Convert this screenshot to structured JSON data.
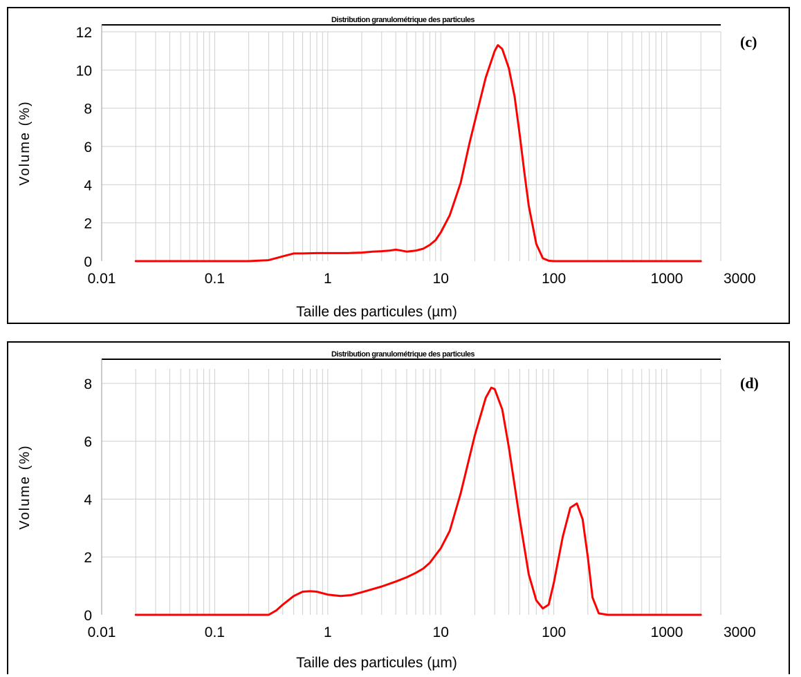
{
  "chart_data": [
    {
      "type": "line",
      "panel_label": "(c)",
      "title": "Distribution granulométrique des particules",
      "xlabel": "Taille des particules (µm)",
      "ylabel": "Volume (%)",
      "x_scale": "log",
      "xlim": [
        0.01,
        3000
      ],
      "ylim": [
        0,
        12
      ],
      "x_ticks": [
        0.01,
        0.1,
        1,
        10,
        100,
        1000,
        3000
      ],
      "x_tick_labels": [
        "0.01",
        "0.1",
        "1",
        "10",
        "100",
        "1000",
        "3000"
      ],
      "y_ticks": [
        0,
        2,
        4,
        6,
        8,
        10,
        12
      ],
      "y_tick_labels": [
        "0",
        "2",
        "4",
        "6",
        "8",
        "10",
        "12"
      ],
      "grid": true,
      "line_color": "#ff0000",
      "series": [
        {
          "x": [
            0.02,
            0.05,
            0.1,
            0.2,
            0.3,
            0.4,
            0.5,
            0.6,
            0.8,
            1,
            1.5,
            2,
            2.5,
            3,
            3.5,
            4,
            4.5,
            5,
            6,
            7,
            8,
            9,
            10,
            12,
            15,
            18,
            20,
            25,
            30,
            32,
            35,
            40,
            45,
            50,
            55,
            60,
            70,
            80,
            90,
            100,
            150,
            300,
            1000,
            2000
          ],
          "y": [
            0,
            0,
            0,
            0,
            0.05,
            0.25,
            0.4,
            0.4,
            0.42,
            0.42,
            0.42,
            0.45,
            0.5,
            0.52,
            0.55,
            0.6,
            0.55,
            0.5,
            0.55,
            0.65,
            0.85,
            1.1,
            1.5,
            2.4,
            4.1,
            6.2,
            7.3,
            9.6,
            11.0,
            11.3,
            11.1,
            10.1,
            8.6,
            6.6,
            4.6,
            2.9,
            0.9,
            0.15,
            0.02,
            0,
            0,
            0,
            0,
            0
          ]
        }
      ]
    },
    {
      "type": "line",
      "panel_label": "(d)",
      "title": "Distribution granulométrique des particules",
      "xlabel": "Taille des particules (µm)",
      "ylabel": "Volume (%)",
      "x_scale": "log",
      "xlim": [
        0.01,
        3000
      ],
      "ylim": [
        0,
        8.5
      ],
      "x_ticks": [
        0.01,
        0.1,
        1,
        10,
        100,
        1000,
        3000
      ],
      "x_tick_labels": [
        "0.01",
        "0.1",
        "1",
        "10",
        "100",
        "1000",
        "3000"
      ],
      "y_ticks": [
        0,
        2,
        4,
        6,
        8
      ],
      "y_tick_labels": [
        "0",
        "2",
        "4",
        "6",
        "8"
      ],
      "grid": true,
      "line_color": "#ff0000",
      "series": [
        {
          "x": [
            0.02,
            0.05,
            0.1,
            0.2,
            0.3,
            0.35,
            0.4,
            0.5,
            0.6,
            0.7,
            0.8,
            1,
            1.3,
            1.6,
            2,
            3,
            4,
            5,
            6,
            7,
            8,
            10,
            12,
            15,
            20,
            25,
            28,
            30,
            35,
            40,
            50,
            60,
            70,
            80,
            90,
            100,
            120,
            140,
            160,
            180,
            200,
            220,
            250,
            300,
            1000,
            2000
          ],
          "y": [
            0,
            0,
            0,
            0,
            0,
            0.15,
            0.35,
            0.65,
            0.8,
            0.82,
            0.8,
            0.7,
            0.65,
            0.68,
            0.78,
            0.98,
            1.15,
            1.3,
            1.45,
            1.6,
            1.8,
            2.3,
            2.9,
            4.2,
            6.2,
            7.5,
            7.85,
            7.8,
            7.1,
            5.8,
            3.3,
            1.4,
            0.5,
            0.22,
            0.35,
            1.1,
            2.7,
            3.7,
            3.85,
            3.3,
            2.0,
            0.6,
            0.05,
            0,
            0,
            0
          ]
        }
      ]
    }
  ]
}
